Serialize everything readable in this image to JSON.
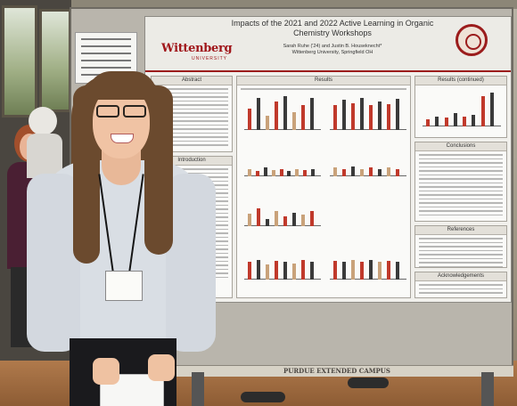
{
  "poster": {
    "logo": "Wittenberg",
    "logo_sub": "UNIVERSITY",
    "title": "Impacts of the 2021 and 2022 Active Learning in Organic Chemistry Workshops",
    "authors": "Sarah Ruhe ('24) and Justin B. Houseknecht*",
    "affiliation": "Wittenberg University, Springfield OH",
    "sections": {
      "abstract": "Abstract",
      "introduction": "Introduction",
      "results": "Results",
      "results_continued": "Results (continued)",
      "conclusions": "Conclusions",
      "references": "References",
      "acknowledgements": "Acknowledgements"
    }
  },
  "board_banner": "PURDUE EXTENDED CAMPUS",
  "colors": {
    "chart_dark": "#3a3a3a",
    "chart_red": "#c0392b",
    "chart_tan": "#c9a27a",
    "brand_red": "#a0161a"
  }
}
